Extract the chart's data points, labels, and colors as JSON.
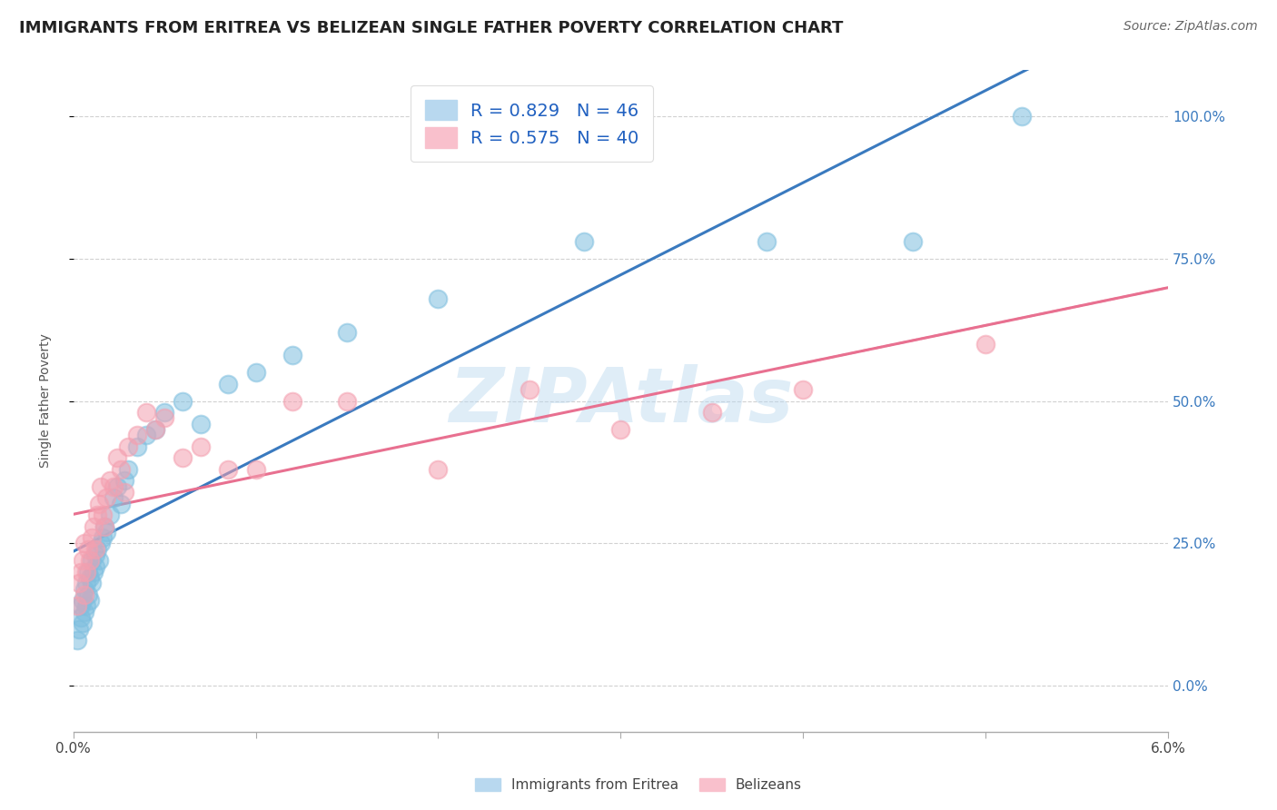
{
  "title": "IMMIGRANTS FROM ERITREA VS BELIZEAN SINGLE FATHER POVERTY CORRELATION CHART",
  "source": "Source: ZipAtlas.com",
  "ylabel": "Single Father Poverty",
  "xlim": [
    0.0,
    6.0
  ],
  "ylim": [
    -8.0,
    108.0
  ],
  "yticks": [
    0,
    25,
    50,
    75,
    100
  ],
  "ytick_labels": [
    "0.0%",
    "25.0%",
    "50.0%",
    "75.0%",
    "100.0%"
  ],
  "legend1_label": "R = 0.829   N = 46",
  "legend2_label": "R = 0.575   N = 40",
  "series1_color": "#7fbfdf",
  "series2_color": "#f4a0b0",
  "trend1_color": "#3a7abf",
  "trend2_color": "#e87090",
  "background_color": "#ffffff",
  "grid_color": "#cccccc",
  "title_color": "#222222",
  "series1_x": [
    0.02,
    0.03,
    0.04,
    0.04,
    0.05,
    0.05,
    0.06,
    0.06,
    0.07,
    0.07,
    0.08,
    0.08,
    0.09,
    0.09,
    0.1,
    0.1,
    0.11,
    0.12,
    0.12,
    0.13,
    0.14,
    0.15,
    0.16,
    0.17,
    0.18,
    0.2,
    0.22,
    0.24,
    0.26,
    0.28,
    0.3,
    0.35,
    0.4,
    0.45,
    0.5,
    0.6,
    0.7,
    0.85,
    1.0,
    1.2,
    1.5,
    2.0,
    2.8,
    3.8,
    4.6,
    5.2
  ],
  "series1_y": [
    8,
    10,
    12,
    14,
    11,
    15,
    13,
    17,
    14,
    18,
    16,
    20,
    15,
    19,
    18,
    22,
    20,
    23,
    21,
    24,
    22,
    25,
    26,
    28,
    27,
    30,
    33,
    35,
    32,
    36,
    38,
    42,
    44,
    45,
    48,
    50,
    46,
    53,
    55,
    58,
    62,
    68,
    78,
    78,
    78,
    100
  ],
  "series2_x": [
    0.02,
    0.03,
    0.04,
    0.05,
    0.06,
    0.06,
    0.07,
    0.08,
    0.09,
    0.1,
    0.11,
    0.12,
    0.13,
    0.14,
    0.15,
    0.16,
    0.17,
    0.18,
    0.2,
    0.22,
    0.24,
    0.26,
    0.28,
    0.3,
    0.35,
    0.4,
    0.45,
    0.5,
    0.6,
    0.7,
    0.85,
    1.0,
    1.2,
    1.5,
    2.0,
    2.5,
    3.0,
    3.5,
    4.0,
    5.0
  ],
  "series2_y": [
    14,
    18,
    20,
    22,
    16,
    25,
    20,
    24,
    22,
    26,
    28,
    24,
    30,
    32,
    35,
    30,
    28,
    33,
    36,
    35,
    40,
    38,
    34,
    42,
    44,
    48,
    45,
    47,
    40,
    42,
    38,
    38,
    50,
    50,
    38,
    52,
    45,
    48,
    52,
    60
  ]
}
